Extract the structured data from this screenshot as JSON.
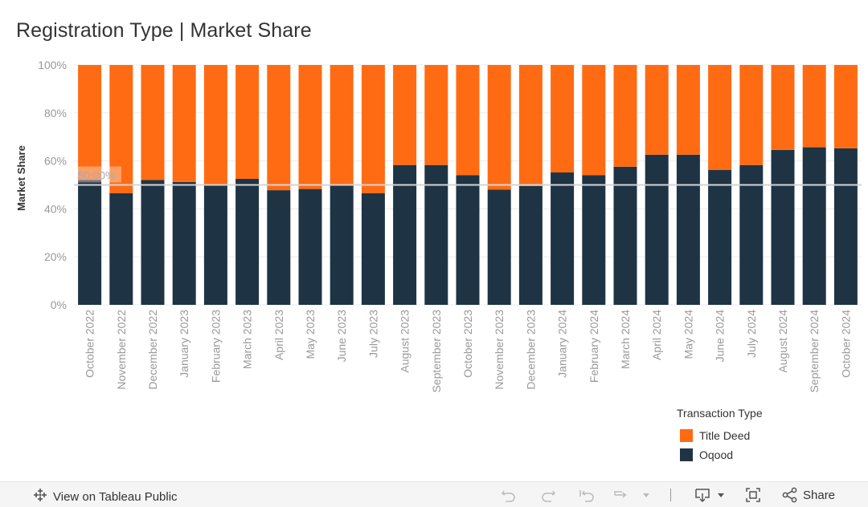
{
  "title": "Registration Type | Market Share",
  "chart_data": {
    "type": "bar",
    "stacked": true,
    "normalized": true,
    "ylabel": "Market Share",
    "xlabel": "",
    "ylim": [
      0,
      100
    ],
    "yticks": [
      "0%",
      "20%",
      "40%",
      "60%",
      "80%",
      "100%"
    ],
    "reference_line": {
      "value": 50,
      "label": "50.00%"
    },
    "categories": [
      "October 2022",
      "November 2022",
      "December 2022",
      "January 2023",
      "February 2023",
      "March 2023",
      "April 2023",
      "May 2023",
      "June 2023",
      "July 2023",
      "August 2023",
      "September 2023",
      "October 2023",
      "November 2023",
      "December 2023",
      "January 2024",
      "February 2024",
      "March 2024",
      "April 2024",
      "May 2024",
      "June 2024",
      "July 2024",
      "August 2024",
      "September 2024",
      "October 2024"
    ],
    "series": [
      {
        "name": "Oqood",
        "color": "#1e3445",
        "values": [
          52,
          46.5,
          52,
          51.2,
          49.8,
          52.5,
          47.8,
          48.3,
          49.8,
          46.5,
          58.3,
          58.3,
          54,
          48,
          49.5,
          55.2,
          54,
          57.6,
          62.6,
          62.6,
          56.3,
          58.3,
          64.6,
          65.7,
          65.3
        ]
      },
      {
        "name": "Title Deed",
        "color": "#ff6b13",
        "values": [
          48,
          53.5,
          48,
          48.8,
          50.2,
          47.5,
          52.2,
          51.7,
          50.2,
          53.5,
          41.7,
          41.7,
          46,
          52,
          50.5,
          44.8,
          46,
          42.4,
          37.4,
          37.4,
          43.7,
          41.7,
          35.4,
          34.3,
          34.7
        ]
      }
    ],
    "legend": {
      "title": "Transaction Type",
      "position": "bottom-right",
      "items": [
        "Title Deed",
        "Oqood"
      ]
    }
  },
  "toolbar": {
    "view_label": "View on Tableau Public",
    "share_label": "Share"
  }
}
